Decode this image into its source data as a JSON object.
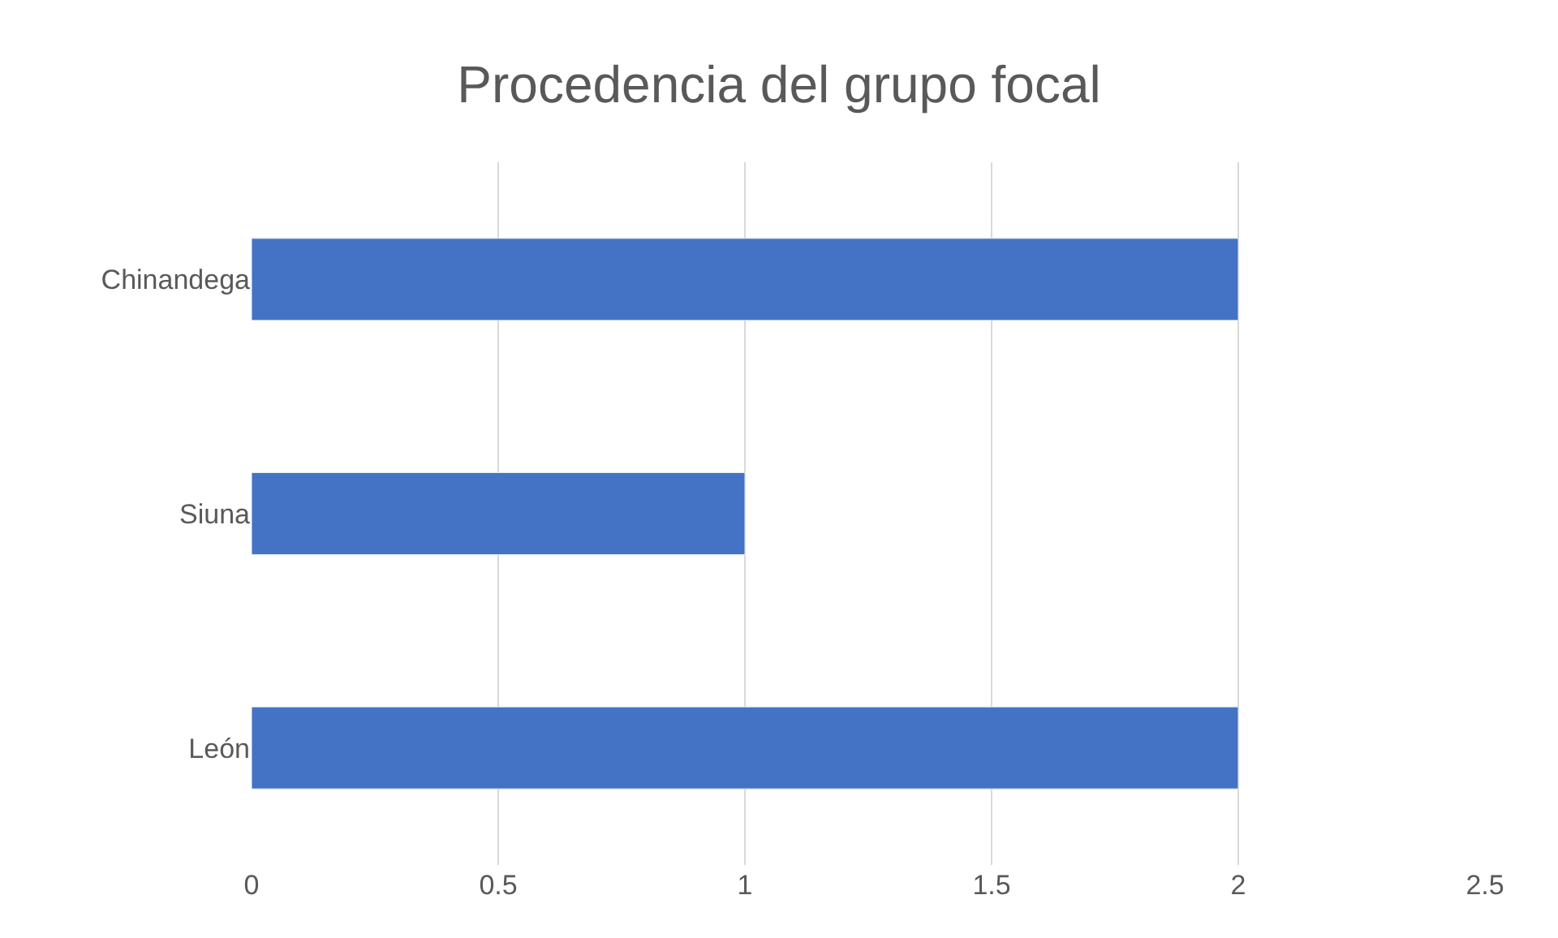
{
  "chart_data": {
    "type": "bar",
    "title": "Procedencia del grupo focal",
    "orientation": "horizontal",
    "categories": [
      "Chinandega",
      "Siuna",
      "León"
    ],
    "values": [
      2,
      1,
      2
    ],
    "color": "#4472c4",
    "xlim": [
      0,
      2.5
    ],
    "xticks": [
      0,
      0.5,
      1,
      1.5,
      2,
      2.5
    ],
    "grid": "x",
    "legend": false
  }
}
